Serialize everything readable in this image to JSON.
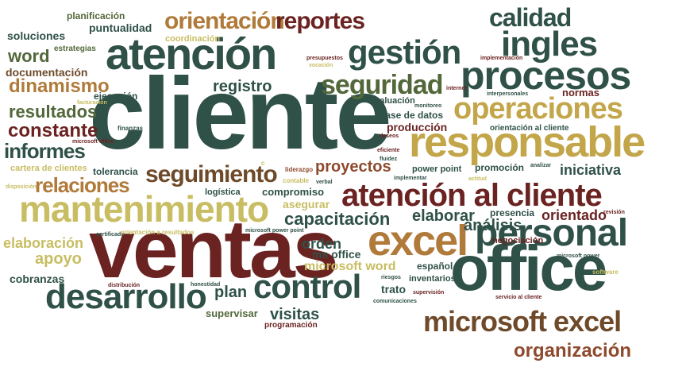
{
  "palette": {
    "teal": "#2f5148",
    "green": "#52683a",
    "olive": "#a39a3c",
    "gold": "#c3a64a",
    "khaki": "#c8bd62",
    "copper": "#b07a3a",
    "rust": "#8e4a2e",
    "maroon": "#6b2322",
    "brown": "#6e4a2a"
  },
  "words": [
    {
      "text": "cliente",
      "color": "teal"
    },
    {
      "text": "ventas",
      "color": "maroon"
    },
    {
      "text": "atención",
      "color": "teal"
    },
    {
      "text": "responsable",
      "color": "gold"
    },
    {
      "text": "office",
      "color": "teal"
    },
    {
      "text": "excel",
      "color": "copper"
    },
    {
      "text": "procesos",
      "color": "teal"
    },
    {
      "text": "personal",
      "color": "teal"
    },
    {
      "text": "mantenimiento",
      "color": "khaki"
    },
    {
      "text": "atención al cliente",
      "color": "maroon"
    },
    {
      "text": "desarrollo",
      "color": "teal"
    },
    {
      "text": "microsoft excel",
      "color": "brown"
    },
    {
      "text": "control",
      "color": "teal"
    },
    {
      "text": "operaciones",
      "color": "gold"
    },
    {
      "text": "gestión",
      "color": "teal"
    },
    {
      "text": "ingles",
      "color": "teal"
    },
    {
      "text": "seguridad",
      "color": "green"
    },
    {
      "text": "seguimiento",
      "color": "brown"
    },
    {
      "text": "orientación",
      "color": "copper"
    },
    {
      "text": "reportes",
      "color": "maroon"
    },
    {
      "text": "calidad",
      "color": "teal"
    },
    {
      "text": "organización",
      "color": "rust"
    },
    {
      "text": "capacitación",
      "color": "teal"
    },
    {
      "text": "relaciones",
      "color": "copper"
    },
    {
      "text": "informes",
      "color": "teal"
    },
    {
      "text": "constante",
      "color": "maroon"
    },
    {
      "text": "resultados",
      "color": "green"
    },
    {
      "text": "dinamismo",
      "color": "copper"
    },
    {
      "text": "registro",
      "color": "teal"
    },
    {
      "text": "proyectos",
      "color": "rust"
    },
    {
      "text": "análisis",
      "color": "teal"
    },
    {
      "text": "apoyo",
      "color": "khaki"
    },
    {
      "text": "orden",
      "color": "teal"
    },
    {
      "text": "elaborar",
      "color": "teal"
    },
    {
      "text": "orientado",
      "color": "maroon"
    },
    {
      "text": "iniciativa",
      "color": "teal"
    },
    {
      "text": "plan",
      "color": "teal"
    },
    {
      "text": "visitas",
      "color": "teal"
    },
    {
      "text": "word",
      "color": "green"
    },
    {
      "text": "soluciones",
      "color": "teal"
    },
    {
      "text": "puntualidad",
      "color": "teal"
    },
    {
      "text": "planificación",
      "color": "green"
    },
    {
      "text": "documentación",
      "color": "brown"
    },
    {
      "text": "ejecución",
      "color": "teal"
    },
    {
      "text": "elaboración",
      "color": "khaki"
    },
    {
      "text": "cobranzas",
      "color": "teal"
    },
    {
      "text": "microsoft word",
      "color": "khaki"
    },
    {
      "text": "ms office",
      "color": "teal"
    },
    {
      "text": "compromiso",
      "color": "teal"
    },
    {
      "text": "asegurar",
      "color": "khaki"
    },
    {
      "text": "tolerancia",
      "color": "teal"
    },
    {
      "text": "logística",
      "color": "teal"
    },
    {
      "text": "trato",
      "color": "teal"
    },
    {
      "text": "español",
      "color": "teal"
    },
    {
      "text": "inventarios",
      "color": "teal"
    },
    {
      "text": "supervisar",
      "color": "green"
    },
    {
      "text": "normas",
      "color": "maroon"
    },
    {
      "text": "producción",
      "color": "maroon"
    },
    {
      "text": "evaluación",
      "color": "teal"
    },
    {
      "text": "base de datos",
      "color": "teal"
    },
    {
      "text": "promoción",
      "color": "teal"
    },
    {
      "text": "negociación",
      "color": "maroon"
    },
    {
      "text": "presencia",
      "color": "teal"
    },
    {
      "text": "power point",
      "color": "teal"
    },
    {
      "text": "coordinación",
      "color": "khaki"
    },
    {
      "text": "estrategias",
      "color": "green"
    },
    {
      "text": "cartera de clientes",
      "color": "khaki"
    },
    {
      "text": "orientación al cliente",
      "color": "teal"
    },
    {
      "text": "programación",
      "color": "maroon"
    },
    {
      "text": "presupuestos",
      "color": "maroon"
    },
    {
      "text": "vocación",
      "color": "khaki"
    },
    {
      "text": "implementación",
      "color": "maroon"
    },
    {
      "text": "interpersonales",
      "color": "teal"
    },
    {
      "text": "internet",
      "color": "maroon"
    },
    {
      "text": "monitoreo",
      "color": "teal"
    },
    {
      "text": "facturación",
      "color": "khaki"
    },
    {
      "text": "finanzas",
      "color": "teal"
    },
    {
      "text": "microsoft office",
      "color": "maroon"
    },
    {
      "text": "disposición",
      "color": "khaki"
    },
    {
      "text": "liderazgo",
      "color": "rust"
    },
    {
      "text": "contable",
      "color": "khaki"
    },
    {
      "text": "verbal",
      "color": "teal"
    },
    {
      "text": "fluidez",
      "color": "teal"
    },
    {
      "text": "eficiente",
      "color": "maroon"
    },
    {
      "text": "deseos",
      "color": "maroon"
    },
    {
      "text": "implementar",
      "color": "teal"
    },
    {
      "text": "actitud",
      "color": "khaki"
    },
    {
      "text": "analizar",
      "color": "teal"
    },
    {
      "text": "revisión",
      "color": "maroon"
    },
    {
      "text": "certificado",
      "color": "teal"
    },
    {
      "text": "orientación a resultados",
      "color": "khaki"
    },
    {
      "text": "microsoft power point",
      "color": "teal"
    },
    {
      "text": "riesgos",
      "color": "teal"
    },
    {
      "text": "comunicaciones",
      "color": "teal"
    },
    {
      "text": "supervisión",
      "color": "maroon"
    },
    {
      "text": "servicio al cliente",
      "color": "maroon"
    },
    {
      "text": "microsoft power",
      "color": "teal"
    },
    {
      "text": "software",
      "color": "khaki"
    },
    {
      "text": "distribución",
      "color": "maroon"
    },
    {
      "text": "honestidad",
      "color": "teal"
    },
    {
      "text": "c",
      "color": "khaki"
    }
  ]
}
